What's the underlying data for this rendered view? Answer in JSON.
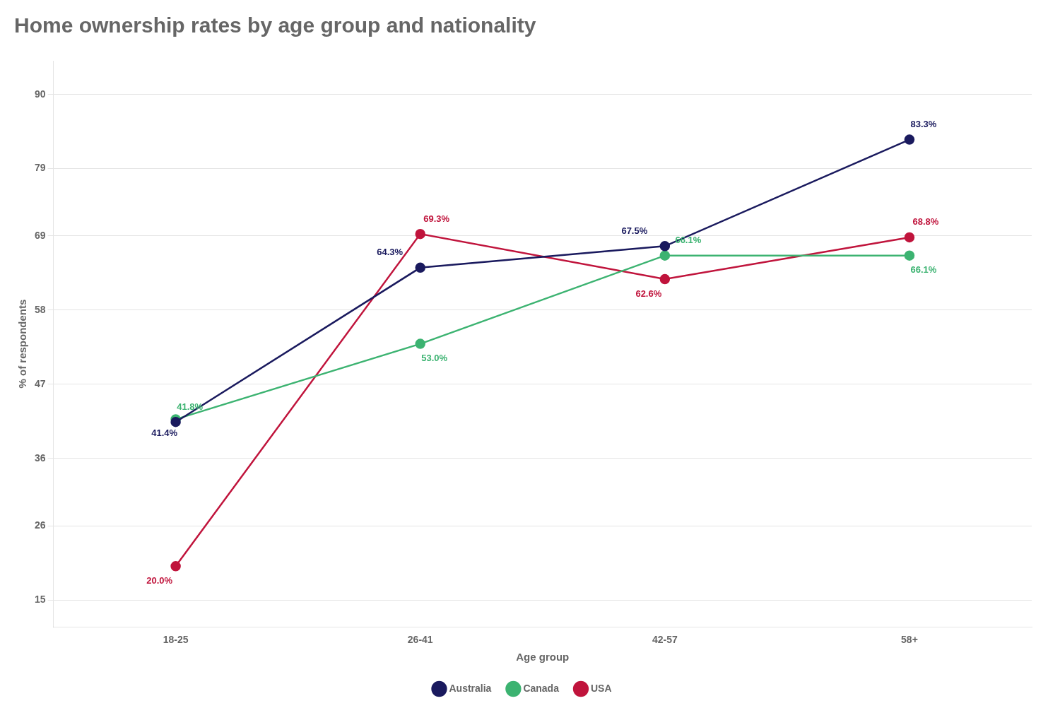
{
  "chart_data": {
    "type": "line",
    "title": "Home ownership rates by age group and nationality",
    "xlabel": "Age group",
    "ylabel": "% of respondents",
    "categories": [
      "18-25",
      "26-41",
      "42-57",
      "58+"
    ],
    "series": [
      {
        "name": "Australia",
        "color": "#1a1a5e",
        "values": [
          41.4,
          64.3,
          67.5,
          83.3
        ],
        "value_labels": [
          "41.4%",
          "64.3%",
          "67.5%",
          "83.3%"
        ]
      },
      {
        "name": "Canada",
        "color": "#3cb371",
        "values": [
          41.8,
          53.0,
          66.1,
          66.1
        ],
        "value_labels": [
          "41.8%",
          "53.0%",
          "66.1%",
          "66.1%"
        ]
      },
      {
        "name": "USA",
        "color": "#c0143c",
        "values": [
          20.0,
          69.3,
          62.6,
          68.8
        ],
        "value_labels": [
          "20.0%",
          "69.3%",
          "62.6%",
          "68.8%"
        ]
      }
    ],
    "ylim": [
      11,
      95
    ],
    "yticks": [
      15,
      26,
      36,
      47,
      58,
      69,
      79,
      90
    ],
    "grid": true,
    "legend": "bottom",
    "data_labels": true,
    "marker": "circle"
  }
}
